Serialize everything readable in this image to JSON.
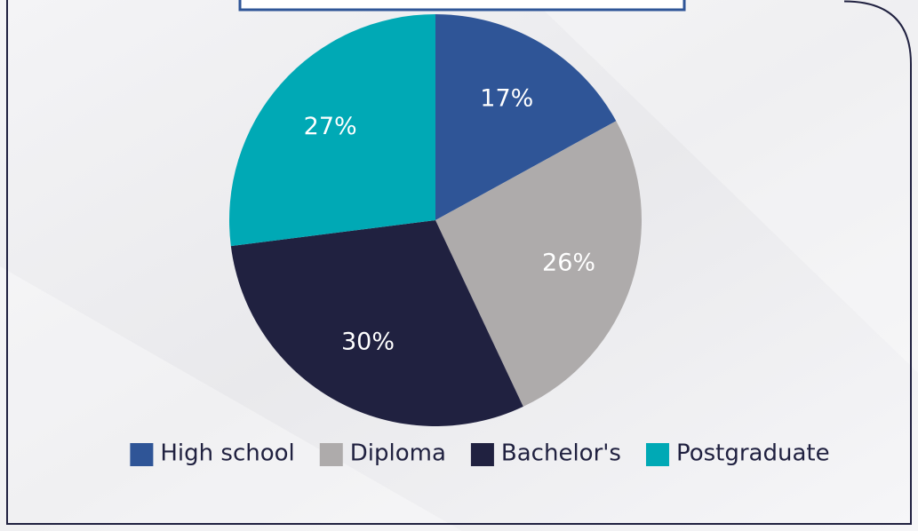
{
  "chart_data": {
    "type": "pie",
    "categories": [
      "High school",
      "Diploma",
      "Bachelor's",
      "Postgraduate"
    ],
    "values": [
      17,
      26,
      30,
      27
    ],
    "value_labels": [
      "17%",
      "26%",
      "30%",
      "27%"
    ],
    "colors": [
      "#2f5597",
      "#aeabab",
      "#202140",
      "#00a9b5"
    ],
    "legend": "bottom"
  }
}
